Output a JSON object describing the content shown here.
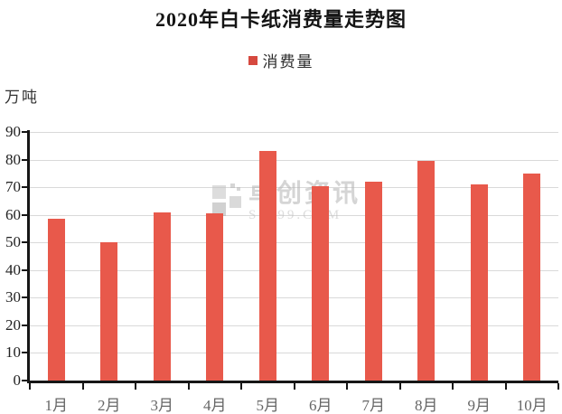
{
  "title": "2020年白卡纸消费量走势图",
  "legend": {
    "label": "消费量",
    "color": "#d6493f"
  },
  "y_axis_unit": "万吨",
  "watermark": {
    "brand": "卓创资讯",
    "domain": "SCI99.COM"
  },
  "colors": {
    "bar": "#e8594b",
    "grid": "#d9d9d9",
    "axis": "#161616",
    "y_label": "#222222",
    "x_label": "#666666"
  },
  "chart_data": {
    "type": "bar",
    "title": "2020年白卡纸消费量走势图",
    "categories": [
      "1月",
      "2月",
      "3月",
      "4月",
      "5月",
      "6月",
      "7月",
      "8月",
      "9月",
      "10月"
    ],
    "series": [
      {
        "name": "消费量",
        "values": [
          58.5,
          50,
          61,
          60.5,
          83,
          70.5,
          72,
          79.5,
          71,
          75
        ]
      }
    ],
    "xlabel": "",
    "ylabel": "万吨",
    "ylim": [
      0,
      90
    ],
    "yticks": [
      0,
      10,
      20,
      30,
      40,
      50,
      60,
      70,
      80,
      90
    ],
    "grid": true,
    "legend_position": "top",
    "bar_color": "#e8594b"
  }
}
